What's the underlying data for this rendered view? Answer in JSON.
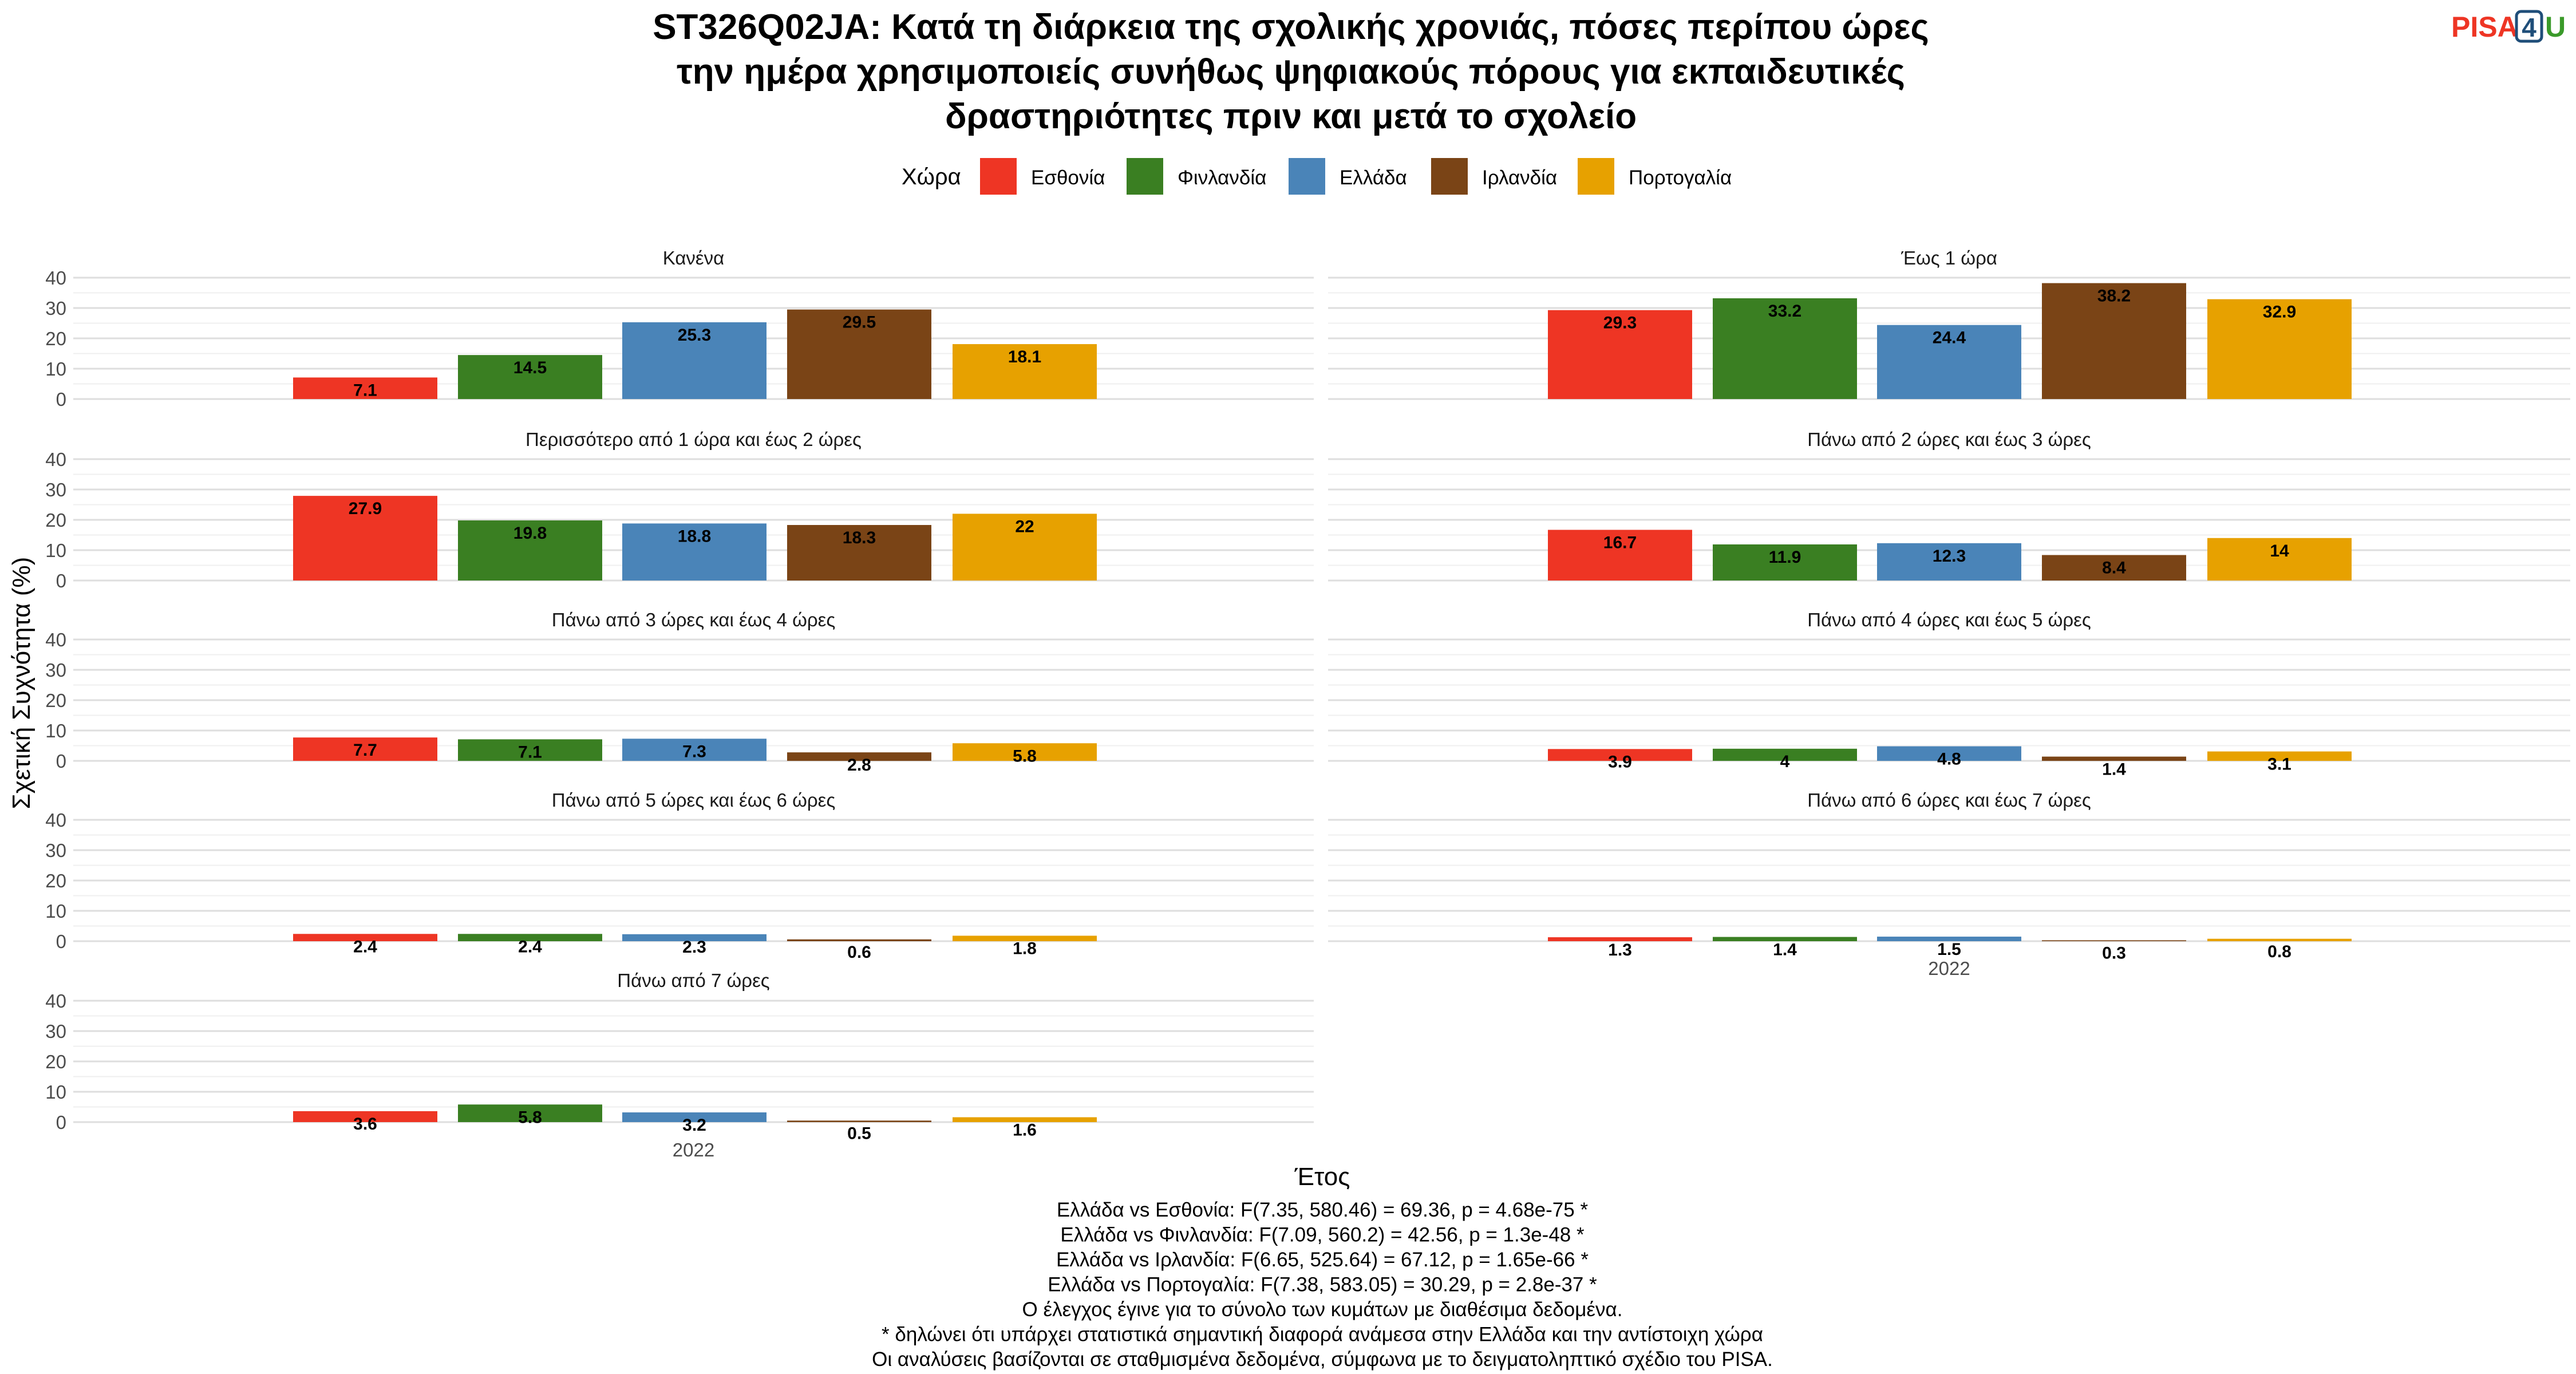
{
  "chart_data": {
    "type": "bar",
    "title": "ST326Q02JA: Κατά τη διάρκεια της σχολικής χρονιάς, πόσες περίπου ώρες την ημέρα χρησιμοποιείς συνήθως ψηφιακούς πόρους για εκπαιδευτικές δραστηριότητες πριν και μετά το σχολείο",
    "title_lines": [
      "ST326Q02JA: Κατά τη διάρκεια της σχολικής χρονιάς, πόσες περίπου ώρες",
      "την ημέρα χρησιμοποιείς συνήθως ψηφιακούς πόρους για εκπαιδευτικές",
      "δραστηριότητες πριν και μετά το σχολείο"
    ],
    "logo": "PISA4U",
    "xlabel": "Έτος",
    "ylabel": "Σχετική Συχνότητα (%)",
    "ylim": [
      0,
      40
    ],
    "yticks": [
      0,
      10,
      20,
      30,
      40
    ],
    "x_category": "2022",
    "grid": true,
    "legend": {
      "title": "Χώρα",
      "placement": "top",
      "items": [
        {
          "name": "Εσθονία",
          "color": "#EE3524"
        },
        {
          "name": "Φινλανδία",
          "color": "#3A7F22"
        },
        {
          "name": "Ελλάδα",
          "color": "#4A84B8"
        },
        {
          "name": "Ιρλανδία",
          "color": "#7A4416"
        },
        {
          "name": "Πορτογαλία",
          "color": "#E7A100"
        }
      ]
    },
    "facets": [
      {
        "label": "Κανένα",
        "values": [
          7.1,
          14.5,
          25.3,
          29.5,
          18.1
        ]
      },
      {
        "label": "Έως 1 ώρα",
        "values": [
          29.3,
          33.2,
          24.4,
          38.2,
          32.9
        ]
      },
      {
        "label": "Περισσότερο από 1 ώρα και έως 2 ώρες",
        "values": [
          27.9,
          19.8,
          18.8,
          18.3,
          22
        ]
      },
      {
        "label": "Πάνω από 2 ώρες και έως 3 ώρες",
        "values": [
          16.7,
          11.9,
          12.3,
          8.4,
          14
        ]
      },
      {
        "label": "Πάνω από 3 ώρες και έως 4 ώρες",
        "values": [
          7.7,
          7.1,
          7.3,
          2.8,
          5.8
        ]
      },
      {
        "label": "Πάνω από 4 ώρες και έως 5 ώρες",
        "values": [
          3.9,
          4,
          4.8,
          1.4,
          3.1
        ]
      },
      {
        "label": "Πάνω από 5 ώρες και έως 6 ώρες",
        "values": [
          2.4,
          2.4,
          2.3,
          0.6,
          1.8
        ]
      },
      {
        "label": "Πάνω από 6 ώρες και έως 7 ώρες",
        "values": [
          1.3,
          1.4,
          1.5,
          0.3,
          0.8
        ]
      },
      {
        "label": "Πάνω από 7 ώρες",
        "values": [
          3.6,
          5.8,
          3.2,
          0.5,
          1.6
        ]
      }
    ],
    "caption": [
      "Ελλάδα vs Εσθονία: F(7.35, 580.46) = 69.36, p = 4.68e-75 *",
      "Ελλάδα vs Φινλανδία: F(7.09, 560.2) = 42.56, p = 1.3e-48 *",
      "Ελλάδα vs Ιρλανδία: F(6.65, 525.64) = 67.12, p = 1.65e-66 *",
      "Ελλάδα vs Πορτογαλία: F(7.38, 583.05) = 30.29, p = 2.8e-37 *",
      "Ο έλεγχος έγινε για το σύνολο των κυμάτων με διαθέσιμα δεδομένα.",
      "* δηλώνει ότι υπάρχει στατιστικά σημαντική διαφορά ανάμεσα στην Ελλάδα και την αντίστοιχη χώρα",
      "Οι αναλύσεις βασίζονται σε σταθμισμένα δεδομένα, σύμφωνα με το δειγματοληπτικό σχέδιο του PISA."
    ]
  }
}
